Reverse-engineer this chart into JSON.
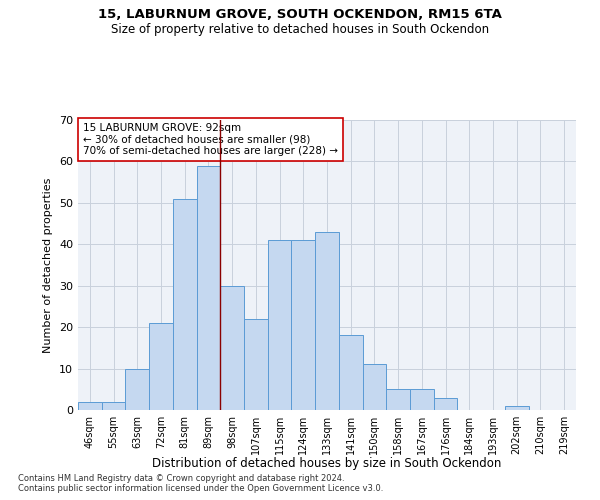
{
  "title1": "15, LABURNUM GROVE, SOUTH OCKENDON, RM15 6TA",
  "title2": "Size of property relative to detached houses in South Ockendon",
  "xlabel": "Distribution of detached houses by size in South Ockendon",
  "ylabel": "Number of detached properties",
  "categories": [
    "46sqm",
    "55sqm",
    "63sqm",
    "72sqm",
    "81sqm",
    "89sqm",
    "98sqm",
    "107sqm",
    "115sqm",
    "124sqm",
    "133sqm",
    "141sqm",
    "150sqm",
    "158sqm",
    "167sqm",
    "176sqm",
    "184sqm",
    "193sqm",
    "202sqm",
    "210sqm",
    "219sqm"
  ],
  "values": [
    2,
    2,
    10,
    21,
    51,
    59,
    30,
    22,
    41,
    41,
    43,
    18,
    11,
    5,
    5,
    3,
    0,
    0,
    1,
    0,
    0
  ],
  "bar_color": "#c5d8f0",
  "bar_edge_color": "#5b9bd5",
  "grid_color": "#c8d0dc",
  "bg_color": "#eef2f8",
  "vline_x": 5.5,
  "vline_color": "#8b0000",
  "annotation_text": "15 LABURNUM GROVE: 92sqm\n← 30% of detached houses are smaller (98)\n70% of semi-detached houses are larger (228) →",
  "annotation_box_color": "#ffffff",
  "annotation_box_edge": "#cc0000",
  "footer1": "Contains HM Land Registry data © Crown copyright and database right 2024.",
  "footer2": "Contains public sector information licensed under the Open Government Licence v3.0.",
  "ylim": [
    0,
    70
  ],
  "yticks": [
    0,
    10,
    20,
    30,
    40,
    50,
    60,
    70
  ]
}
